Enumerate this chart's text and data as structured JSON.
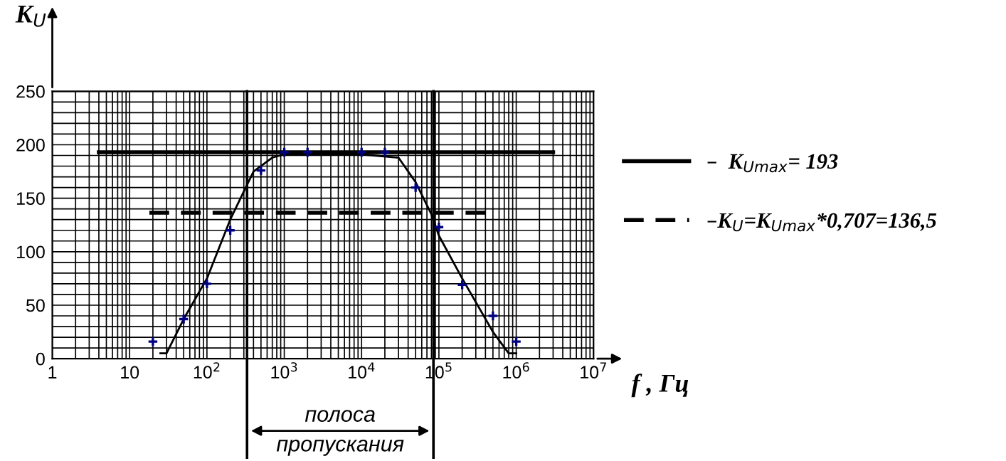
{
  "chart_data": {
    "type": "scatter",
    "log": "x",
    "xlabel": "f , Гц",
    "ylabel": "K$_{U}$",
    "xlim": [
      1,
      10000000
    ],
    "ylim": [
      0,
      250
    ],
    "xticks": [
      1,
      10,
      {
        "value": 100,
        "label": "10$^{2}$"
      },
      {
        "value": 1000,
        "label": "10$^{3}$"
      },
      {
        "value": 10000,
        "label": "10$^{4}$"
      },
      {
        "value": 100000,
        "label": "10$^{5}$"
      },
      {
        "value": 1000000,
        "label": "10$^{6}$"
      },
      {
        "value": 10000000,
        "label": "10$^{7}$"
      }
    ],
    "yticks": [
      0,
      50,
      100,
      150,
      200,
      250
    ],
    "grid": true,
    "legend": "right",
    "series": [
      {
        "marker": "cross",
        "color": "#000080",
        "x": [
          20,
          50,
          100,
          200,
          500,
          1000,
          2000,
          10000,
          20000,
          50000,
          100000,
          200000,
          500000,
          1000000
        ],
        "values": [
          16,
          37,
          70,
          120,
          176,
          193,
          193,
          193,
          193,
          160,
          123,
          69,
          40,
          16
        ]
      },
      {
        "type": "line",
        "color": "#000000",
        "x": [
          25,
          30,
          50,
          100,
          200,
          400,
          700,
          1000,
          2000,
          10000,
          30000,
          50000,
          80000,
          100000,
          200000,
          500000,
          800000,
          1000000
        ],
        "values": [
          5,
          5,
          37,
          75,
          130,
          175,
          188,
          191,
          191,
          191,
          188,
          165,
          135,
          115,
          75,
          25,
          5,
          5
        ]
      },
      {
        "type": "line",
        "name": "–  K$_{Umax}$= 193",
        "color": "#000000",
        "line_style": "solid",
        "x": [
          4,
          3000000
        ],
        "values": [
          193,
          193
        ]
      },
      {
        "type": "line",
        "name": "–K$_{U}$=K$_{Umax}$*0,707=136,5",
        "color": "#000000",
        "line_style": "dashed",
        "x": [
          18,
          500000
        ],
        "values": [
          136.5,
          136.5
        ]
      }
    ],
    "ref_lines": [
      {
        "axis": "x",
        "value": 330
      },
      {
        "axis": "x",
        "value": 85000
      }
    ],
    "annotations": [
      "полоса\nпропускания"
    ]
  }
}
